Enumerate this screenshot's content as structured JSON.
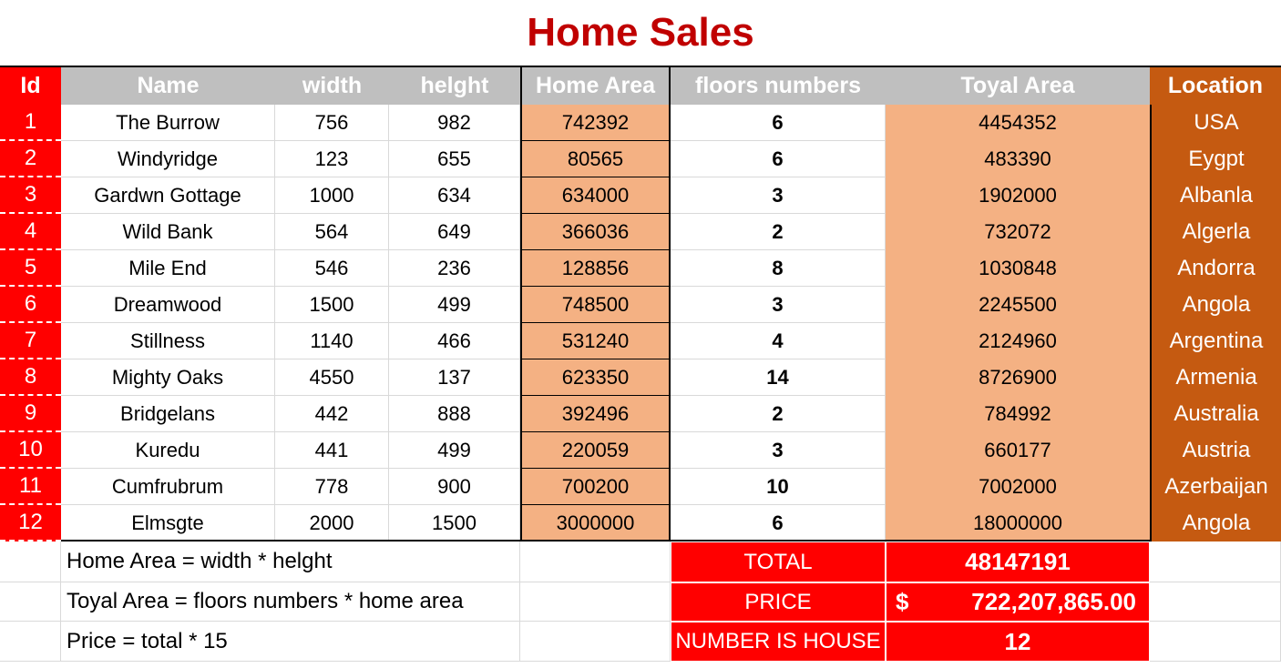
{
  "title": "Home Sales",
  "table": {
    "header": [
      "Id",
      "Name",
      "width",
      "helght",
      "Home Area",
      "floors numbers",
      "Toyal Area",
      "Location"
    ],
    "rows": [
      [
        1,
        "The Burrow",
        756,
        982,
        742392,
        6,
        4454352,
        "USA"
      ],
      [
        2,
        "Windyridge",
        123,
        655,
        80565,
        6,
        483390,
        "Eygpt"
      ],
      [
        3,
        "Gardwn Gottage",
        1000,
        634,
        634000,
        3,
        1902000,
        "Albanla"
      ],
      [
        4,
        "Wild Bank",
        564,
        649,
        366036,
        2,
        732072,
        "Algerla"
      ],
      [
        5,
        "Mile End",
        546,
        236,
        128856,
        8,
        1030848,
        "Andorra"
      ],
      [
        6,
        "Dreamwood",
        1500,
        499,
        748500,
        3,
        2245500,
        "Angola"
      ],
      [
        7,
        "Stillness",
        1140,
        466,
        531240,
        4,
        2124960,
        "Argentina"
      ],
      [
        8,
        "Mighty Oaks",
        4550,
        137,
        623350,
        14,
        8726900,
        "Armenia"
      ],
      [
        9,
        "Bridgelans",
        442,
        888,
        392496,
        2,
        784992,
        "Australia"
      ],
      [
        10,
        "Kuredu",
        441,
        499,
        220059,
        3,
        660177,
        "Austria"
      ],
      [
        11,
        "Cumfrubrum",
        778,
        900,
        700200,
        10,
        7002000,
        "Azerbaijan"
      ],
      [
        12,
        "Elmsgte",
        2000,
        1500,
        3000000,
        6,
        18000000,
        "Angola"
      ]
    ]
  },
  "notes": [
    "Home Area = width * helght",
    "Toyal Area = floors numbers * home area",
    "Price = total * 15"
  ],
  "summary": [
    {
      "label": "TOTAL",
      "value": 48147191
    },
    {
      "label": "PRICE",
      "currency": "$",
      "value": "722,207,865.00"
    },
    {
      "label": "NUMBER IS HOUSE",
      "value": 12
    }
  ]
}
